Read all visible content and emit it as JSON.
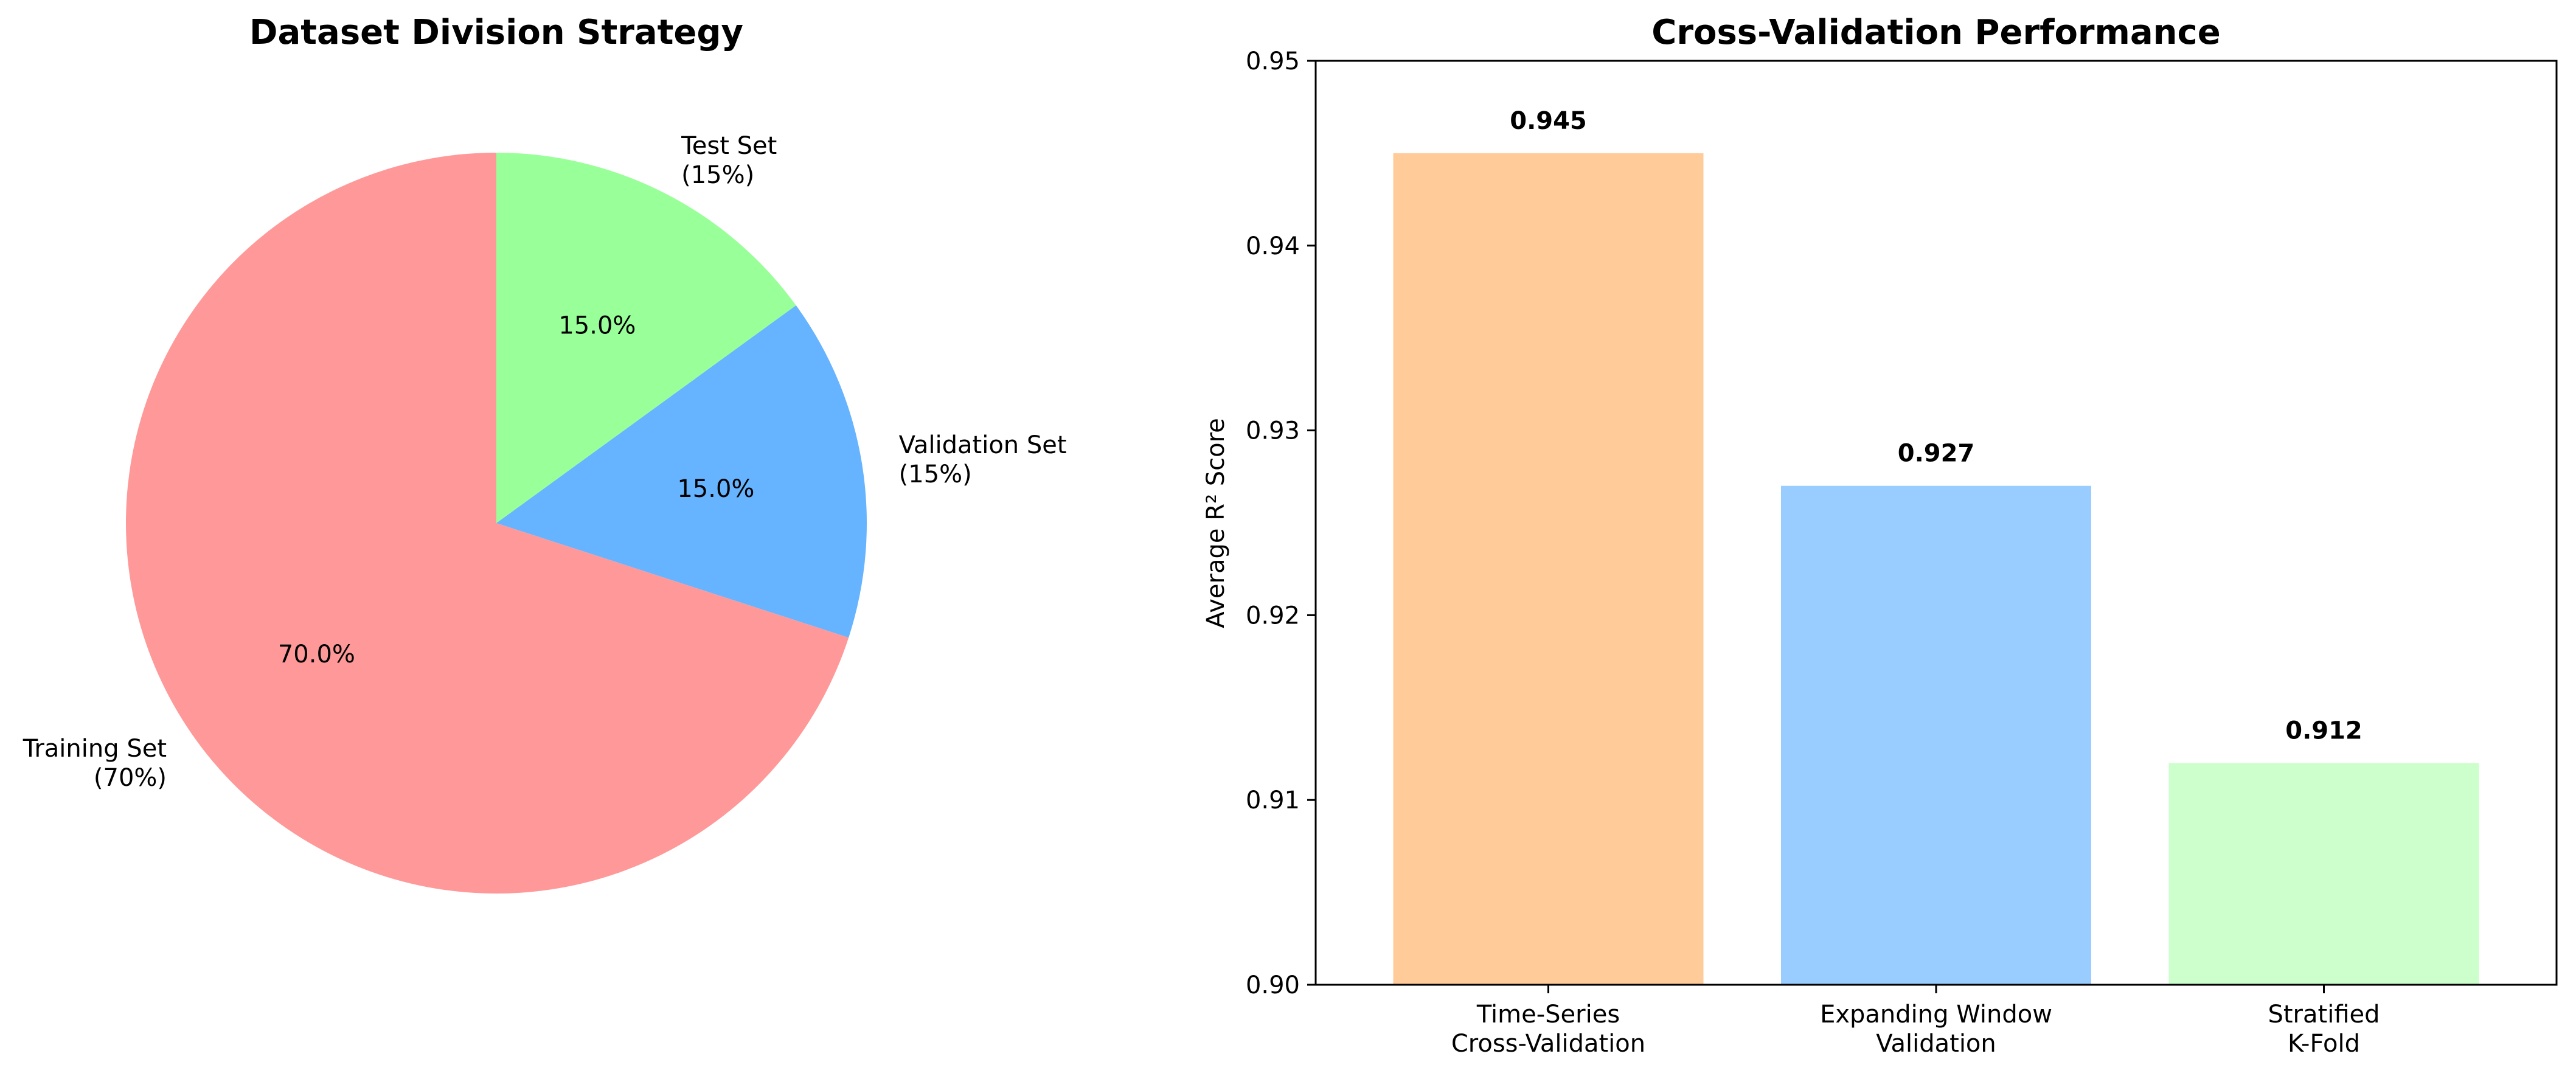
{
  "chart_data": [
    {
      "type": "pie",
      "title": "Dataset Division Strategy",
      "slices": [
        {
          "label_lines": [
            "Training Set",
            "(70%)"
          ],
          "value": 70,
          "pct_label": "70.0%",
          "color": "#ff9999"
        },
        {
          "label_lines": [
            "Validation Set",
            "(15%)"
          ],
          "value": 15,
          "pct_label": "15.0%",
          "color": "#66b3ff"
        },
        {
          "label_lines": [
            "Test Set",
            "(15%)"
          ],
          "value": 15,
          "pct_label": "15.0%",
          "color": "#99ff99"
        }
      ],
      "start_angle_deg": 90,
      "direction": "counterclockwise-from-top, training set first"
    },
    {
      "type": "bar",
      "title": "Cross-Validation Performance",
      "ylabel": "Average R² Score",
      "xlabel": "",
      "categories": [
        [
          "Time-Series",
          "Cross-Validation"
        ],
        [
          "Expanding Window",
          "Validation"
        ],
        [
          "Stratified",
          "K-Fold"
        ]
      ],
      "values": [
        0.945,
        0.927,
        0.912
      ],
      "value_labels": [
        "0.945",
        "0.927",
        "0.912"
      ],
      "colors": [
        "#ffcc99",
        "#99ccff",
        "#ccffcc"
      ],
      "ylim": [
        0.9,
        0.95
      ],
      "yticks": [
        "0.90",
        "0.91",
        "0.92",
        "0.93",
        "0.94",
        "0.95"
      ],
      "grid": false
    }
  ]
}
